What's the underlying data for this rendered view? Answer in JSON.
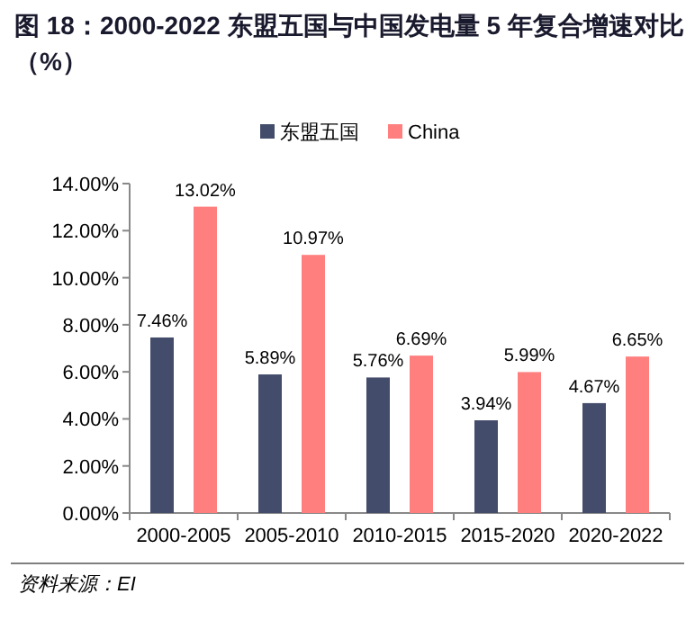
{
  "chart_data": {
    "type": "bar",
    "title": "图 18：2000-2022 东盟五国与中国发电量 5 年复合增速对比（%）",
    "categories": [
      "2000-2005",
      "2005-2010",
      "2010-2015",
      "2015-2020",
      "2020-2022"
    ],
    "series": [
      {
        "name": "东盟五国",
        "color": "#434D6B",
        "values": [
          7.46,
          5.89,
          5.76,
          3.94,
          4.67
        ],
        "value_labels": [
          "7.46%",
          "5.89%",
          "5.76%",
          "3.94%",
          "4.67%"
        ]
      },
      {
        "name": "China",
        "color": "#FF7F7F",
        "values": [
          13.02,
          10.97,
          6.69,
          5.99,
          6.65
        ],
        "value_labels": [
          "13.02%",
          "10.97%",
          "6.69%",
          "5.99%",
          "6.65%"
        ]
      }
    ],
    "ylim": [
      0,
      14
    ],
    "yticks": [
      {
        "value": 0,
        "label": "0.00%"
      },
      {
        "value": 2,
        "label": "2.00%"
      },
      {
        "value": 4,
        "label": "4.00%"
      },
      {
        "value": 6,
        "label": "6.00%"
      },
      {
        "value": 8,
        "label": "8.00%"
      },
      {
        "value": 10,
        "label": "10.00%"
      },
      {
        "value": 12,
        "label": "12.00%"
      },
      {
        "value": 14,
        "label": "14.00%"
      }
    ],
    "legend": "top",
    "grid": false,
    "annotations": [
      "资料来源：EI"
    ]
  }
}
